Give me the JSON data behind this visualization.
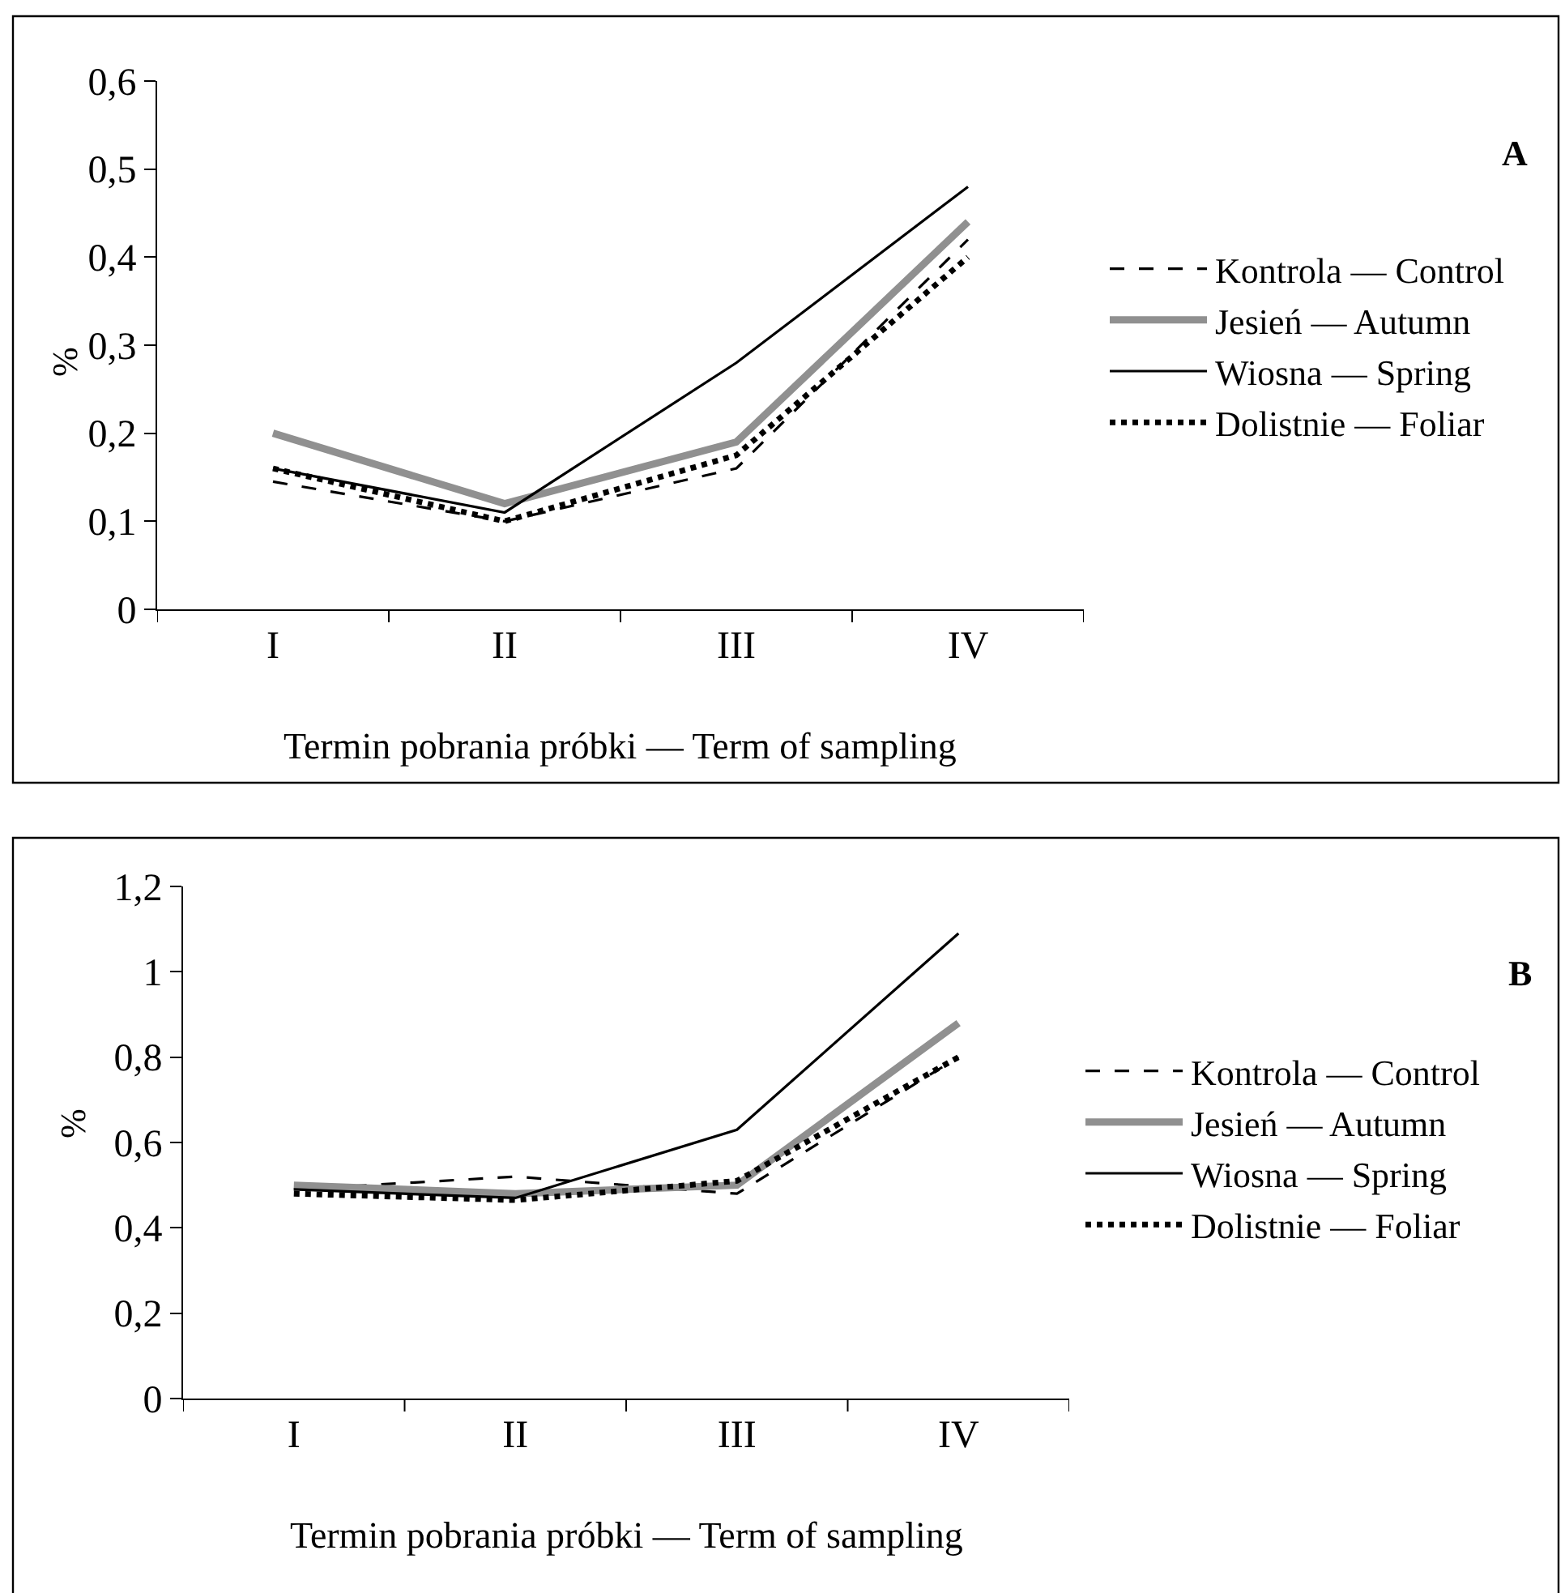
{
  "chart_data": [
    {
      "type": "line",
      "xlabel": "Termin pobrania próbki — Term of sampling",
      "ylabel": "%",
      "annotations": [
        "A"
      ],
      "categories": [
        "I",
        "II",
        "III",
        "IV"
      ],
      "series": [
        {
          "name": "Kontrola — Control",
          "color": "#000000",
          "line_style": "dashed",
          "values": [
            0.145,
            0.1,
            0.16,
            0.42
          ]
        },
        {
          "name": "Jesień — Autumn",
          "color": "#909090",
          "line_style": "solid",
          "values": [
            0.2,
            0.12,
            0.19,
            0.44
          ]
        },
        {
          "name": "Wiosna — Spring",
          "color": "#000000",
          "line_style": "solid",
          "values": [
            0.16,
            0.11,
            0.28,
            0.48
          ]
        },
        {
          "name": "Dolistnie — Foliar",
          "color": "#000000",
          "line_style": "dotted",
          "values": [
            0.16,
            0.1,
            0.175,
            0.4
          ]
        }
      ],
      "ylim": [
        0,
        0.6
      ],
      "yticks": [
        0,
        {
          "value": 0.1,
          "label": "0,1"
        },
        {
          "value": 0.2,
          "label": "0,2"
        },
        {
          "value": 0.3,
          "label": "0,3"
        },
        {
          "value": 0.4,
          "label": "0,4"
        },
        {
          "value": 0.5,
          "label": "0,5"
        },
        {
          "value": 0.6,
          "label": "0,6"
        }
      ],
      "legend": "right",
      "marker": "none"
    },
    {
      "type": "line",
      "xlabel": "Termin pobrania próbki — Term of sampling",
      "ylabel": "%",
      "annotations": [
        "B"
      ],
      "categories": [
        "I",
        "II",
        "III",
        "IV"
      ],
      "series": [
        {
          "name": "Kontrola — Control",
          "color": "#000000",
          "line_style": "dashed",
          "values": [
            0.49,
            0.52,
            0.48,
            0.8
          ]
        },
        {
          "name": "Jesień — Autumn",
          "color": "#909090",
          "line_style": "solid",
          "values": [
            0.5,
            0.48,
            0.5,
            0.88
          ]
        },
        {
          "name": "Wiosna — Spring",
          "color": "#000000",
          "line_style": "solid",
          "values": [
            0.49,
            0.47,
            0.63,
            1.09
          ]
        },
        {
          "name": "Dolistnie — Foliar",
          "color": "#000000",
          "line_style": "dotted",
          "values": [
            0.48,
            0.465,
            0.51,
            0.8
          ]
        }
      ],
      "ylim": [
        0,
        1.2
      ],
      "yticks": [
        0,
        {
          "value": 0.2,
          "label": "0,2"
        },
        {
          "value": 0.4,
          "label": "0,4"
        },
        {
          "value": 0.6,
          "label": "0,6"
        },
        {
          "value": 0.8,
          "label": "0,8"
        },
        1,
        {
          "value": 1.2,
          "label": "1,2"
        }
      ],
      "legend": "right",
      "marker": "none"
    }
  ]
}
